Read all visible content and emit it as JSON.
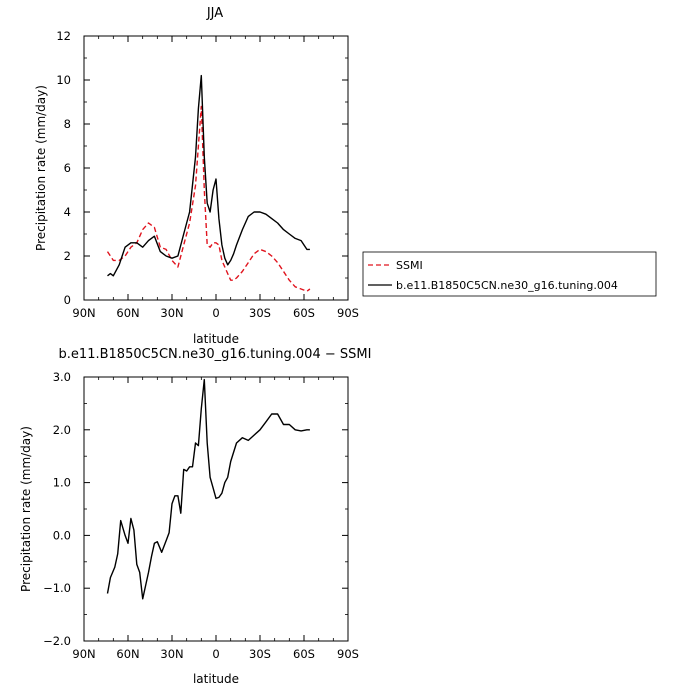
{
  "chart_data": [
    {
      "type": "line",
      "title": "JJA",
      "xlabel": "latitude",
      "ylabel": "Precipitation rate (mm/day)",
      "xlim": [
        90,
        -90
      ],
      "ylim": [
        0,
        12
      ],
      "x_ticks": [
        {
          "value": 90,
          "label": "90N"
        },
        {
          "value": 60,
          "label": "60N"
        },
        {
          "value": 30,
          "label": "30N"
        },
        {
          "value": 0,
          "label": "0"
        },
        {
          "value": -30,
          "label": "30S"
        },
        {
          "value": -60,
          "label": "60S"
        },
        {
          "value": -90,
          "label": "90S"
        }
      ],
      "y_ticks": [
        {
          "value": 0,
          "label": "0"
        },
        {
          "value": 2,
          "label": "2"
        },
        {
          "value": 4,
          "label": "4"
        },
        {
          "value": 6,
          "label": "6"
        },
        {
          "value": 8,
          "label": "8"
        },
        {
          "value": 10,
          "label": "10"
        },
        {
          "value": 12,
          "label": "12"
        }
      ],
      "grid": false,
      "legend_position": "right-outside",
      "series": [
        {
          "name": "SSMI",
          "color": "#e0141e",
          "dash": true,
          "x": [
            74,
            70,
            66,
            62,
            58,
            54,
            50,
            46,
            42,
            38,
            34,
            30,
            26,
            22,
            18,
            14,
            10,
            8,
            6,
            4,
            2,
            0,
            -2,
            -4,
            -6,
            -8,
            -10,
            -12,
            -14,
            -18,
            -22,
            -26,
            -30,
            -34,
            -38,
            -42,
            -46,
            -50,
            -54,
            -58,
            -62,
            -64
          ],
          "y": [
            2.2,
            1.8,
            1.8,
            2.0,
            2.4,
            2.6,
            3.2,
            3.5,
            3.3,
            2.4,
            2.3,
            1.8,
            1.5,
            2.5,
            3.5,
            5.2,
            8.8,
            5.0,
            2.5,
            2.4,
            2.6,
            2.6,
            2.5,
            1.8,
            1.5,
            1.2,
            0.9,
            0.9,
            1.0,
            1.3,
            1.7,
            2.1,
            2.3,
            2.2,
            2.0,
            1.7,
            1.3,
            0.9,
            0.6,
            0.5,
            0.4,
            0.5
          ]
        },
        {
          "name": "b.e11.B1850C5CN.ne30_g16.tuning.004",
          "color": "#000000",
          "dash": false,
          "x": [
            74,
            72,
            70,
            66,
            62,
            58,
            54,
            50,
            46,
            42,
            38,
            34,
            30,
            26,
            22,
            18,
            14,
            12,
            10,
            8,
            6,
            4,
            2,
            0,
            -2,
            -4,
            -6,
            -8,
            -10,
            -12,
            -14,
            -18,
            -22,
            -26,
            -30,
            -34,
            -38,
            -42,
            -46,
            -50,
            -54,
            -58,
            -62,
            -64
          ],
          "y": [
            1.1,
            1.2,
            1.1,
            1.6,
            2.4,
            2.6,
            2.6,
            2.4,
            2.7,
            2.9,
            2.2,
            2.0,
            1.9,
            2.0,
            3.0,
            4.0,
            6.5,
            8.7,
            10.2,
            6.5,
            4.4,
            4.0,
            5.0,
            5.5,
            3.7,
            2.5,
            1.9,
            1.6,
            1.8,
            2.1,
            2.5,
            3.2,
            3.8,
            4.0,
            4.0,
            3.9,
            3.7,
            3.5,
            3.2,
            3.0,
            2.8,
            2.7,
            2.3,
            2.3
          ]
        }
      ]
    },
    {
      "type": "line",
      "title": "b.e11.B1850C5CN.ne30_g16.tuning.004  −  SSMI",
      "xlabel": "latitude",
      "ylabel": "Precipitation rate (mm/day)",
      "xlim": [
        90,
        -90
      ],
      "ylim": [
        -2,
        3
      ],
      "x_ticks": [
        {
          "value": 90,
          "label": "90N"
        },
        {
          "value": 60,
          "label": "60N"
        },
        {
          "value": 30,
          "label": "30N"
        },
        {
          "value": 0,
          "label": "0"
        },
        {
          "value": -30,
          "label": "30S"
        },
        {
          "value": -60,
          "label": "60S"
        },
        {
          "value": -90,
          "label": "90S"
        }
      ],
      "y_ticks": [
        {
          "value": -2,
          "label": "−2.0"
        },
        {
          "value": -1,
          "label": "−1.0"
        },
        {
          "value": 0,
          "label": "0.0"
        },
        {
          "value": 1,
          "label": "1.0"
        },
        {
          "value": 2,
          "label": "2.0"
        },
        {
          "value": 3,
          "label": "3.0"
        }
      ],
      "grid": false,
      "series": [
        {
          "color": "#000000",
          "dash": false,
          "x": [
            74,
            72,
            69,
            67,
            65,
            62,
            60,
            58,
            56,
            54,
            52,
            50,
            48,
            46,
            44,
            42,
            40,
            37,
            34,
            32,
            30,
            28,
            26,
            24,
            22,
            20,
            18,
            16,
            14,
            12,
            10,
            8,
            6,
            4,
            2,
            0,
            -2,
            -4,
            -6,
            -8,
            -10,
            -14,
            -18,
            -22,
            -26,
            -30,
            -34,
            -38,
            -42,
            -46,
            -50,
            -54,
            -58,
            -62,
            -64
          ],
          "y": [
            -1.1,
            -0.8,
            -0.6,
            -0.35,
            0.28,
            0.0,
            -0.15,
            0.32,
            0.1,
            -0.55,
            -0.7,
            -1.2,
            -0.95,
            -0.7,
            -0.4,
            -0.15,
            -0.12,
            -0.32,
            -0.1,
            0.05,
            0.6,
            0.75,
            0.75,
            0.42,
            1.25,
            1.22,
            1.3,
            1.3,
            1.75,
            1.7,
            2.4,
            2.95,
            1.75,
            1.1,
            0.9,
            0.7,
            0.72,
            0.8,
            1.0,
            1.1,
            1.4,
            1.75,
            1.85,
            1.8,
            1.9,
            2.0,
            2.15,
            2.3,
            2.3,
            2.1,
            2.1,
            2.0,
            1.98,
            2.0,
            2.0
          ]
        }
      ]
    }
  ]
}
